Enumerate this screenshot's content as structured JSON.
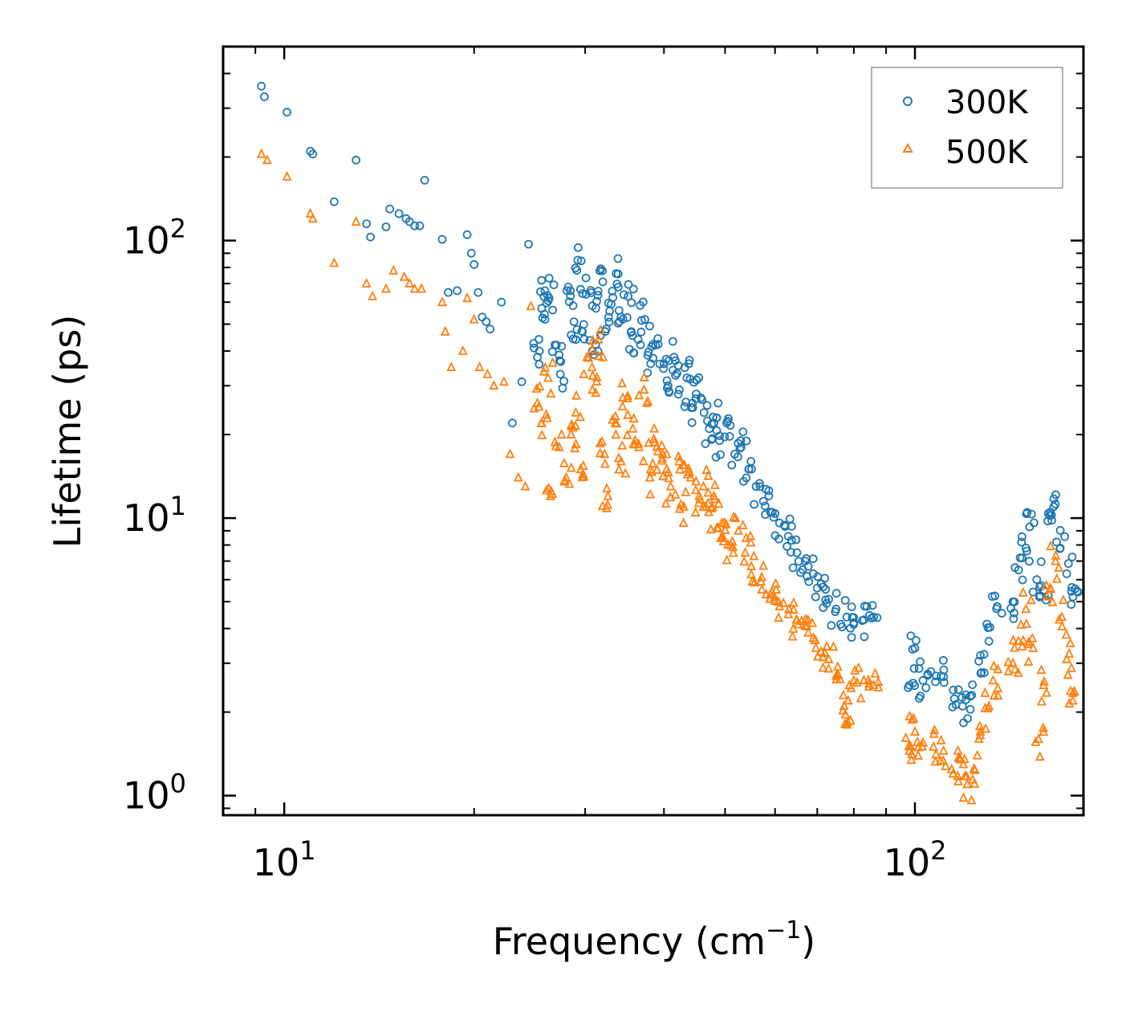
{
  "chart_data": {
    "type": "scatter",
    "title": "",
    "xlabel": "Frequency (cm",
    "xlabel_sup": "−1",
    "xlabel_end": ")",
    "ylabel": "Lifetime (ps)",
    "xscale": "log",
    "yscale": "log",
    "xlim": [
      8.0,
      185.0
    ],
    "ylim": [
      0.85,
      500
    ],
    "x_ticks": [
      {
        "value": 10,
        "base": "10",
        "exp": "1"
      },
      {
        "value": 100,
        "base": "10",
        "exp": "2"
      }
    ],
    "y_ticks": [
      {
        "value": 1,
        "base": "10",
        "exp": "0"
      },
      {
        "value": 10,
        "base": "10",
        "exp": "1"
      },
      {
        "value": 100,
        "base": "10",
        "exp": "2"
      }
    ],
    "legend_position": "top-right",
    "series": [
      {
        "name": "300K",
        "marker": "circle",
        "color": "#1f77b4",
        "points": [
          [
            9.2,
            360
          ],
          [
            9.3,
            330
          ],
          [
            10.1,
            290
          ],
          [
            11.0,
            210
          ],
          [
            11.1,
            205
          ],
          [
            12.0,
            138
          ],
          [
            13.0,
            195
          ],
          [
            13.5,
            115
          ],
          [
            13.7,
            103
          ],
          [
            14.5,
            112
          ],
          [
            14.7,
            130
          ],
          [
            15.2,
            125
          ],
          [
            15.6,
            120
          ],
          [
            15.8,
            117
          ],
          [
            16.1,
            113
          ],
          [
            16.4,
            113
          ],
          [
            16.7,
            165
          ],
          [
            17.8,
            101
          ],
          [
            18.2,
            65
          ],
          [
            18.8,
            66
          ],
          [
            19.5,
            105
          ],
          [
            19.8,
            90
          ],
          [
            20.0,
            82
          ],
          [
            20.3,
            65
          ],
          [
            20.6,
            53
          ],
          [
            20.9,
            51
          ],
          [
            21.2,
            48
          ],
          [
            22.1,
            60
          ],
          [
            23.0,
            22
          ],
          [
            23.8,
            31
          ],
          [
            24.4,
            97
          ],
          [
            24.9,
            41
          ],
          [
            25.2,
            38
          ],
          [
            25.6,
            57
          ],
          [
            25.9,
            66
          ],
          [
            26.3,
            62
          ],
          [
            27.0,
            42
          ],
          [
            27.4,
            33
          ],
          [
            28.2,
            68
          ],
          [
            28.8,
            51
          ],
          [
            29.2,
            85
          ],
          [
            29.7,
            47
          ],
          [
            30.1,
            64
          ],
          [
            30.8,
            40
          ],
          [
            31.2,
            57
          ],
          [
            32.0,
            71
          ],
          [
            32.4,
            48
          ],
          [
            33.0,
            59
          ],
          [
            33.6,
            76
          ],
          [
            34.2,
            53
          ],
          [
            35.1,
            63
          ],
          [
            35.5,
            47
          ],
          [
            36.4,
            44
          ],
          [
            37.3,
            52
          ],
          [
            38.1,
            36
          ],
          [
            38.8,
            42
          ],
          [
            40.0,
            36
          ],
          [
            40.6,
            30
          ],
          [
            41.5,
            38
          ],
          [
            42.3,
            29
          ],
          [
            43.5,
            32
          ],
          [
            44.2,
            25
          ],
          [
            45.0,
            28
          ],
          [
            46.3,
            24
          ],
          [
            47.2,
            21
          ],
          [
            48.5,
            23
          ],
          [
            49.0,
            19
          ],
          [
            50.3,
            22
          ],
          [
            51.8,
            17
          ],
          [
            53.0,
            18
          ],
          [
            54.5,
            15
          ],
          [
            56.0,
            13
          ],
          [
            57.5,
            11.5
          ],
          [
            59.0,
            10.5
          ],
          [
            61.0,
            9.6
          ],
          [
            63.0,
            8.6
          ],
          [
            65.0,
            7.5
          ],
          [
            67.0,
            7.0
          ],
          [
            69.0,
            6.3
          ],
          [
            71.0,
            5.8
          ],
          [
            73.0,
            5.1
          ],
          [
            75.0,
            4.7
          ],
          [
            78.0,
            4.4
          ],
          [
            80.0,
            4.2
          ],
          [
            83.0,
            4.3
          ],
          [
            86.0,
            4.4
          ],
          [
            98.0,
            2.5
          ],
          [
            100.0,
            3.4
          ],
          [
            103.0,
            2.6
          ],
          [
            106.0,
            2.8
          ],
          [
            110.0,
            2.7
          ],
          [
            115.0,
            2.4
          ],
          [
            119.0,
            2.1
          ],
          [
            123.0,
            2.3
          ],
          [
            127.0,
            3.2
          ],
          [
            131.0,
            3.6
          ],
          [
            135.0,
            4.8
          ],
          [
            143.0,
            5.0
          ],
          [
            146.0,
            6.5
          ],
          [
            150.0,
            7.8
          ],
          [
            152.0,
            9.3
          ],
          [
            156.0,
            6.0
          ],
          [
            160.0,
            5.5
          ],
          [
            164.0,
            10.5
          ],
          [
            166.0,
            11.0
          ],
          [
            170.0,
            7.8
          ],
          [
            174.0,
            6.3
          ],
          [
            178.0,
            5.2
          ]
        ]
      },
      {
        "name": "500K",
        "marker": "triangle",
        "color": "#ff7f0e",
        "points": [
          [
            9.2,
            205
          ],
          [
            9.4,
            195
          ],
          [
            10.1,
            170
          ],
          [
            11.0,
            125
          ],
          [
            11.1,
            120
          ],
          [
            12.0,
            83
          ],
          [
            13.0,
            117
          ],
          [
            13.5,
            70
          ],
          [
            13.8,
            63
          ],
          [
            14.5,
            67
          ],
          [
            14.9,
            78
          ],
          [
            15.5,
            74
          ],
          [
            15.8,
            70
          ],
          [
            16.1,
            67
          ],
          [
            16.5,
            67
          ],
          [
            17.8,
            60
          ],
          [
            18.0,
            47
          ],
          [
            18.4,
            35
          ],
          [
            19.2,
            40
          ],
          [
            19.5,
            62
          ],
          [
            20.0,
            52
          ],
          [
            20.4,
            35
          ],
          [
            21.0,
            33
          ],
          [
            21.5,
            30
          ],
          [
            22.3,
            31
          ],
          [
            22.8,
            17
          ],
          [
            23.5,
            14
          ],
          [
            24.1,
            13
          ],
          [
            24.6,
            58
          ],
          [
            25.2,
            26
          ],
          [
            25.6,
            22
          ],
          [
            26.2,
            32
          ],
          [
            26.5,
            12.5
          ],
          [
            27.3,
            18
          ],
          [
            28.0,
            14
          ],
          [
            28.5,
            20
          ],
          [
            29.0,
            24
          ],
          [
            29.5,
            15
          ],
          [
            30.2,
            38
          ],
          [
            30.8,
            29
          ],
          [
            31.5,
            44
          ],
          [
            32.2,
            17
          ],
          [
            32.6,
            12
          ],
          [
            33.5,
            22
          ],
          [
            34.2,
            16
          ],
          [
            35.0,
            27
          ],
          [
            35.7,
            21
          ],
          [
            36.5,
            18
          ],
          [
            37.2,
            29
          ],
          [
            38.0,
            14
          ],
          [
            38.6,
            21
          ],
          [
            39.8,
            17
          ],
          [
            40.4,
            15
          ],
          [
            41.0,
            13
          ],
          [
            42.3,
            16
          ],
          [
            43.0,
            11
          ],
          [
            44.1,
            14
          ],
          [
            45.5,
            12
          ],
          [
            46.2,
            13
          ],
          [
            47.1,
            10.5
          ],
          [
            48.0,
            12
          ],
          [
            49.5,
            8.5
          ],
          [
            50.2,
            9.5
          ],
          [
            51.0,
            8
          ],
          [
            52.5,
            9
          ],
          [
            53.8,
            7.5
          ],
          [
            55.0,
            6.7
          ],
          [
            57.0,
            5.9
          ],
          [
            59.0,
            5.3
          ],
          [
            61.0,
            4.8
          ],
          [
            63.0,
            4.5
          ],
          [
            65.0,
            4.3
          ],
          [
            67.0,
            4.1
          ],
          [
            69.0,
            3.7
          ],
          [
            71.0,
            3.3
          ],
          [
            73.0,
            3.1
          ],
          [
            75.0,
            2.7
          ],
          [
            77.0,
            2.3
          ],
          [
            78.0,
            1.8
          ],
          [
            80.0,
            2.6
          ],
          [
            83.0,
            2.6
          ],
          [
            86.0,
            2.5
          ],
          [
            98.0,
            1.45
          ],
          [
            100.0,
            1.7
          ],
          [
            103.0,
            1.55
          ],
          [
            107.0,
            1.5
          ],
          [
            111.0,
            1.45
          ],
          [
            115.0,
            1.2
          ],
          [
            118.0,
            1.35
          ],
          [
            121.0,
            1.1
          ],
          [
            124.0,
            1.25
          ],
          [
            127.0,
            1.7
          ],
          [
            131.0,
            2.1
          ],
          [
            133.0,
            2.6
          ],
          [
            143.0,
            3.0
          ],
          [
            146.0,
            3.6
          ],
          [
            150.0,
            4.7
          ],
          [
            154.0,
            3.4
          ],
          [
            157.0,
            1.6
          ],
          [
            160.0,
            2.5
          ],
          [
            164.0,
            5.6
          ],
          [
            167.0,
            7.0
          ],
          [
            171.0,
            4.4
          ],
          [
            174.0,
            3.1
          ],
          [
            178.0,
            2.2
          ]
        ]
      }
    ]
  }
}
